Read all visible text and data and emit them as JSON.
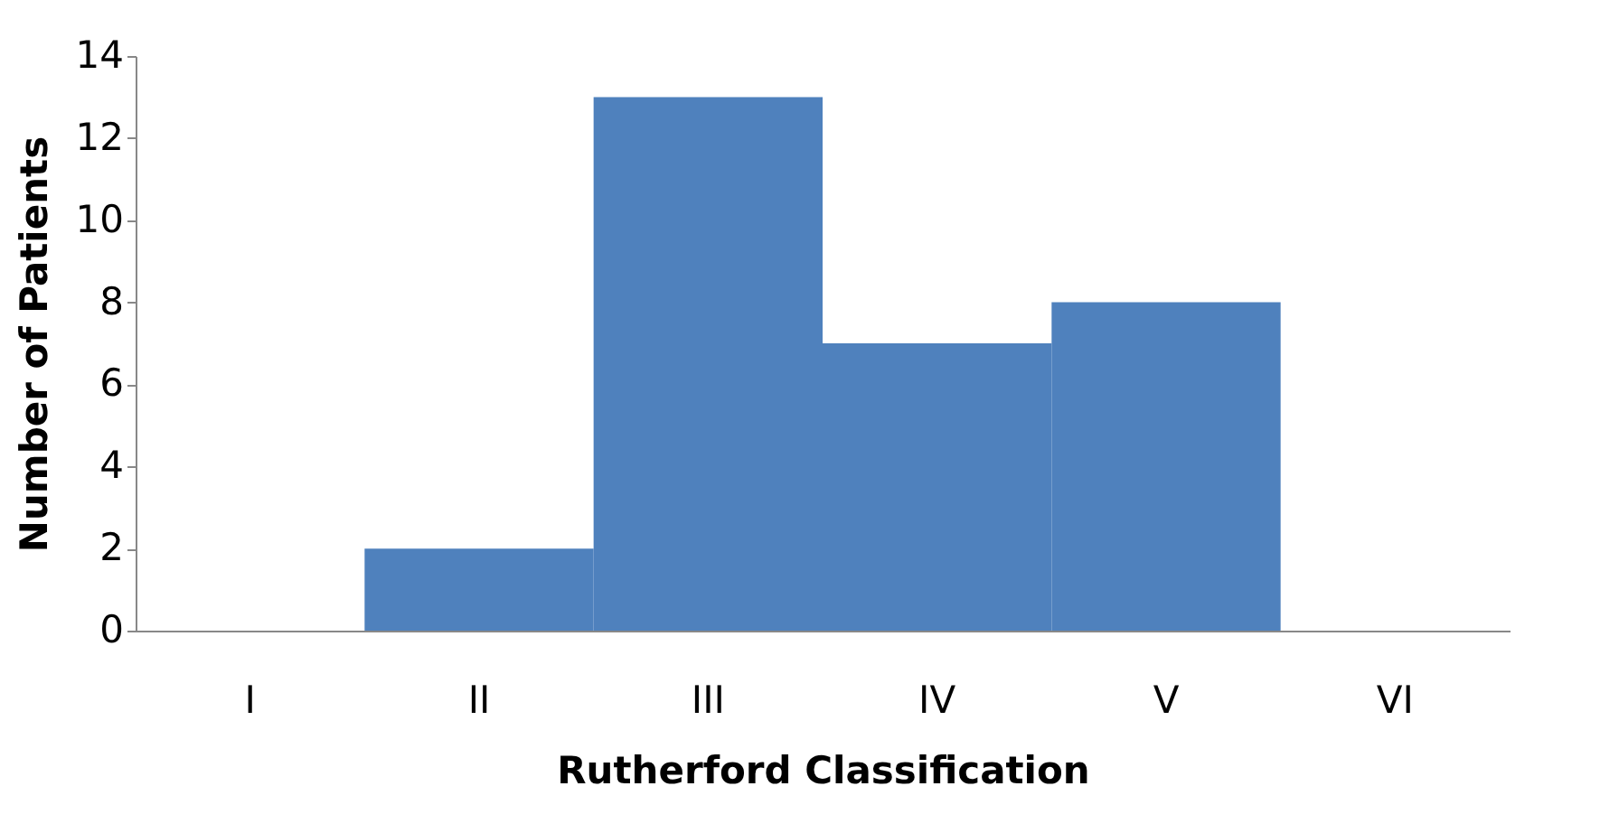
{
  "chart_data": {
    "type": "bar",
    "xlabel": "Rutherford Classification",
    "ylabel": "Number of Patients",
    "categories": [
      "I",
      "II",
      "III",
      "IV",
      "V",
      "VI"
    ],
    "values": [
      0,
      2,
      13,
      7,
      8,
      0
    ],
    "color": "#4f81bd",
    "ylim": [
      0,
      14
    ],
    "yticks": [
      0,
      2,
      4,
      6,
      8,
      10,
      12,
      14
    ],
    "grid": false
  }
}
